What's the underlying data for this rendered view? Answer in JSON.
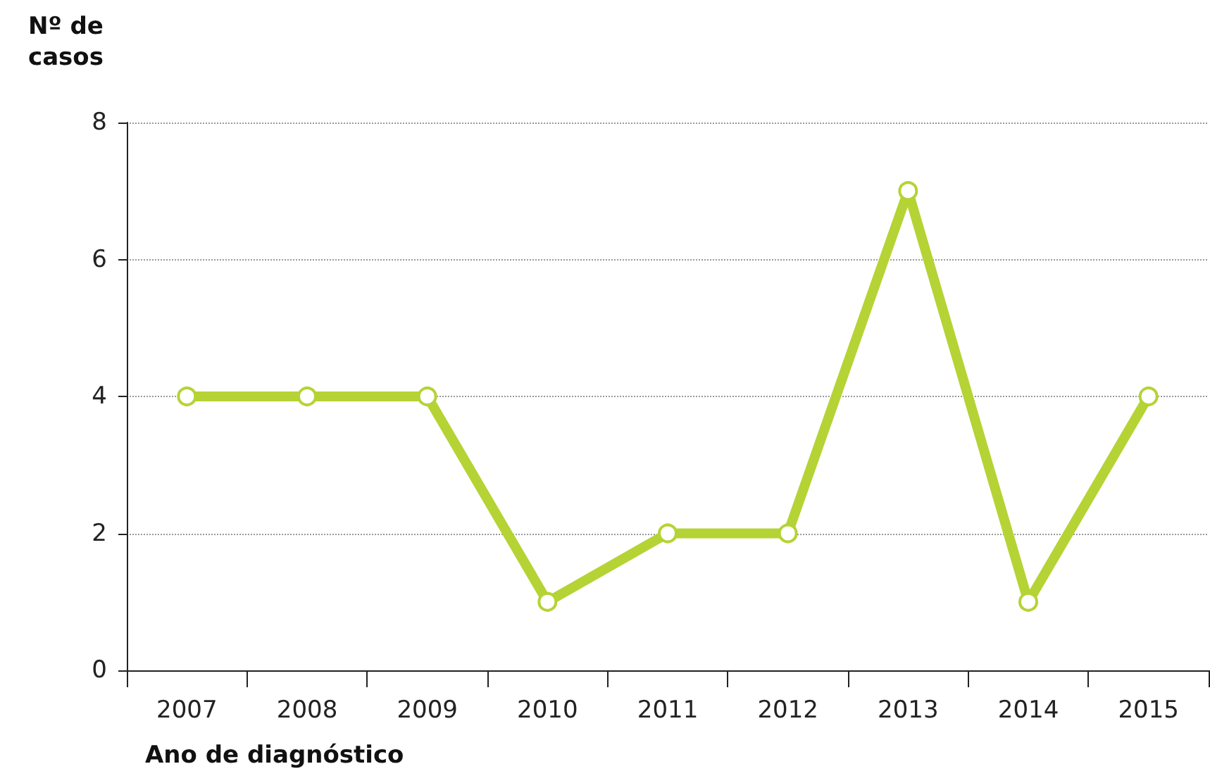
{
  "chart_data": {
    "type": "line",
    "xlabel": "Ano de diagnóstico",
    "ylabel": "Nº de casos",
    "categories": [
      "2007",
      "2008",
      "2009",
      "2010",
      "2011",
      "2012",
      "2013",
      "2014",
      "2015"
    ],
    "series": [
      {
        "color": "#b5d334",
        "values": [
          4,
          4,
          4,
          1,
          2,
          2,
          7,
          1,
          4
        ]
      }
    ],
    "ylim": [
      0,
      8
    ],
    "yticks": [
      0,
      2,
      4,
      6,
      8
    ],
    "grid": "y",
    "marker": "circle",
    "line_style": "solid"
  }
}
